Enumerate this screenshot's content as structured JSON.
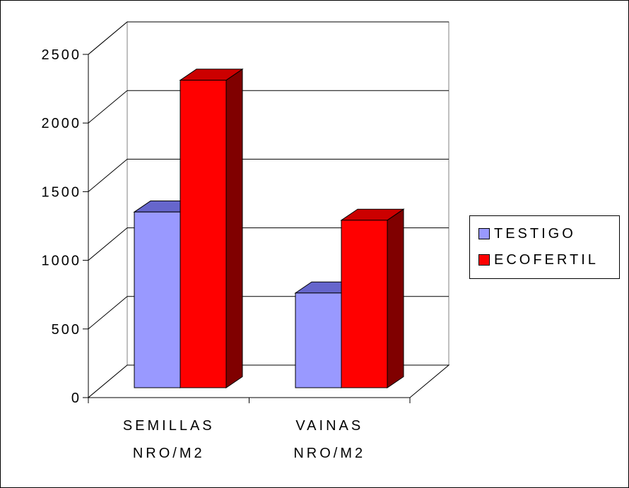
{
  "chart_data": {
    "type": "bar",
    "title": "",
    "xlabel": "",
    "ylabel": "",
    "ylim": [
      0,
      2500
    ],
    "yticks": [
      "0",
      "500",
      "1000",
      "1500",
      "2000",
      "2500"
    ],
    "grid": true,
    "three_d": true,
    "legend_position": "right",
    "categories": [
      {
        "line1": "SEMILLAS",
        "line2": "NRO/M2"
      },
      {
        "line1": "VAINAS",
        "line2": "NRO/M2"
      }
    ],
    "series": [
      {
        "name": "TESTIGO",
        "values": [
          1280,
          690
        ],
        "color": "#9999ff",
        "top_color": "#6666cc",
        "side_color": "#333399"
      },
      {
        "name": "ECOFERTIL",
        "values": [
          2240,
          1220
        ],
        "color": "#ff0000",
        "top_color": "#cc0000",
        "side_color": "#800000"
      }
    ]
  }
}
